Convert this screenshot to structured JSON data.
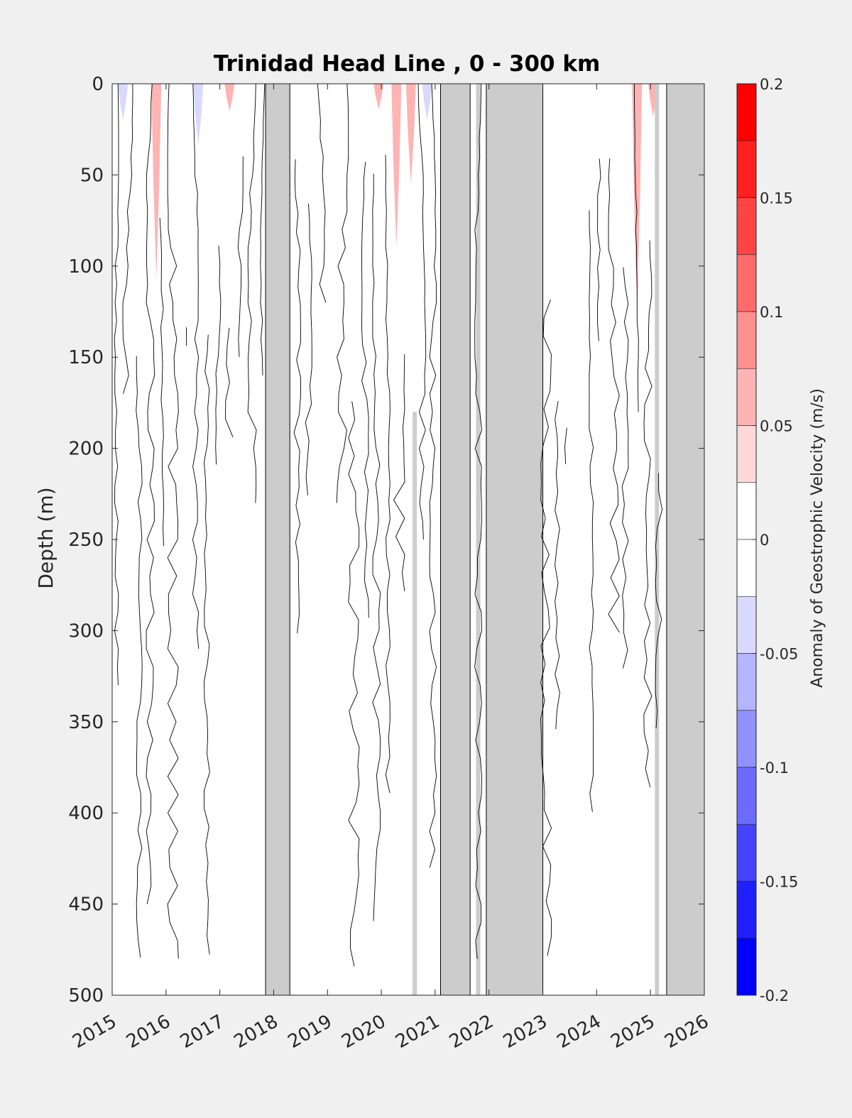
{
  "chart_data": {
    "type": "heatmap",
    "title": "Trinidad Head Line , 0 - 300 km",
    "ylabel": "Depth (m)",
    "xlabel": "",
    "xlim": [
      2015,
      2026
    ],
    "ylim": [
      0,
      500
    ],
    "y_reversed": true,
    "x_ticks": [
      "2015",
      "2016",
      "2017",
      "2018",
      "2019",
      "2020",
      "2021",
      "2022",
      "2023",
      "2024",
      "2025",
      "2026"
    ],
    "y_ticks": [
      "0",
      "50",
      "100",
      "150",
      "200",
      "250",
      "300",
      "350",
      "400",
      "450",
      "500"
    ],
    "no_data_color": "#cccccc",
    "grid": false,
    "no_data_periods": [
      {
        "start": 2017.85,
        "end": 2018.3
      },
      {
        "start": 2021.1,
        "end": 2021.65
      },
      {
        "start": 2021.95,
        "end": 2023.0
      },
      {
        "start": 2025.3,
        "end": 2026.0
      }
    ],
    "no_data_strips": [
      {
        "x": 2020.62,
        "y_start": 180,
        "y_end": 500
      },
      {
        "x": 2021.8,
        "y_start": 0,
        "y_end": 500
      },
      {
        "x": 2025.12,
        "y_start": 0,
        "y_end": 500
      }
    ],
    "anomaly_patches": [
      {
        "x": 2015.2,
        "depth_max": 20,
        "value": -0.05
      },
      {
        "x": 2015.82,
        "depth_max": 107,
        "value": 0.05
      },
      {
        "x": 2016.6,
        "depth_max": 34,
        "value": -0.05
      },
      {
        "x": 2017.18,
        "depth_max": 15,
        "value": 0.05
      },
      {
        "x": 2019.95,
        "depth_max": 14,
        "value": 0.05
      },
      {
        "x": 2020.28,
        "depth_max": 90,
        "value": 0.05
      },
      {
        "x": 2020.55,
        "depth_max": 55,
        "value": 0.05
      },
      {
        "x": 2020.85,
        "depth_max": 20,
        "value": -0.05
      },
      {
        "x": 2024.75,
        "depth_max": 125,
        "value": 0.05
      },
      {
        "x": 2025.05,
        "depth_max": 18,
        "value": 0.05
      }
    ],
    "colorbar": {
      "label": "Anomaly of Geostrophic Velocity (m/s)",
      "ticks": [
        "0.2",
        "0.15",
        "0.1",
        "0.05",
        "0",
        "-0.05",
        "-0.1",
        "-0.15",
        "-0.2"
      ],
      "levels": [
        {
          "lower": 0.175,
          "upper": 0.2,
          "color": "#ff0000"
        },
        {
          "lower": 0.15,
          "upper": 0.175,
          "color": "#ff2020"
        },
        {
          "lower": 0.125,
          "upper": 0.15,
          "color": "#ff4444"
        },
        {
          "lower": 0.1,
          "upper": 0.125,
          "color": "#ff6b6b"
        },
        {
          "lower": 0.075,
          "upper": 0.1,
          "color": "#ff9090"
        },
        {
          "lower": 0.05,
          "upper": 0.075,
          "color": "#ffb4b4"
        },
        {
          "lower": 0.025,
          "upper": 0.05,
          "color": "#ffd9d9"
        },
        {
          "lower": 0.0,
          "upper": 0.025,
          "color": "#ffffff"
        },
        {
          "lower": -0.025,
          "upper": 0.0,
          "color": "#ffffff"
        },
        {
          "lower": -0.05,
          "upper": -0.025,
          "color": "#d9d9ff"
        },
        {
          "lower": -0.075,
          "upper": -0.05,
          "color": "#b4b4ff"
        },
        {
          "lower": -0.1,
          "upper": -0.075,
          "color": "#9090ff"
        },
        {
          "lower": -0.125,
          "upper": -0.1,
          "color": "#6b6bff"
        },
        {
          "lower": -0.15,
          "upper": -0.125,
          "color": "#4444ff"
        },
        {
          "lower": -0.175,
          "upper": -0.15,
          "color": "#2020ff"
        },
        {
          "lower": -0.2,
          "upper": -0.175,
          "color": "#0000ff"
        }
      ]
    }
  }
}
